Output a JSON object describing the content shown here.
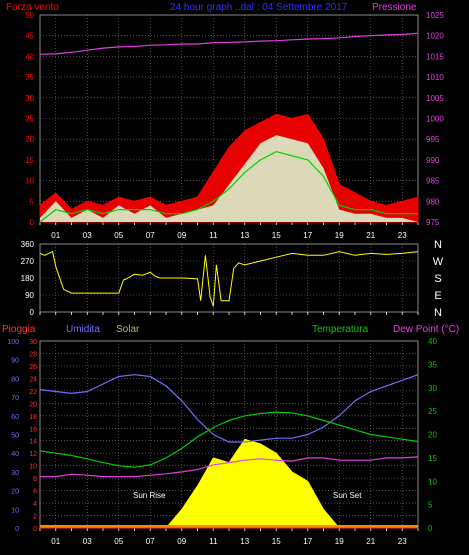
{
  "colors": {
    "background": "#000000",
    "frame": "#8a8a8a",
    "grid": "#7a7a7a",
    "text": "#ffffff",
    "hour_tick": "#ffffff",
    "wind_speed": "#ff0000",
    "wind_gust": "#ffffff",
    "wind_avg": "#00d000",
    "pressure": "#e040e0",
    "direction": "#ffff00",
    "rain": "#ff3333",
    "humidity": "#7070ff",
    "solar": "#ffff00",
    "temperature": "#00cc00",
    "dewpoint": "#e040e0",
    "title": "#3030ff",
    "sun_label": "#ffffff"
  },
  "header": {
    "left": "Forza vento",
    "center": "24 hour graph ..dal : 04 Settembre 2017",
    "right": "Pressione"
  },
  "x_ticks": [
    "01",
    "03",
    "05",
    "07",
    "09",
    "11",
    "13",
    "15",
    "17",
    "19",
    "21",
    "23"
  ],
  "chart_data": [
    {
      "type": "line",
      "title": "24 hour graph ..dal : 04 Settembre 2017",
      "left_axis": {
        "label": "Forza vento",
        "range": [
          0,
          50
        ],
        "ticks": [
          0,
          5,
          10,
          15,
          20,
          25,
          30,
          35,
          40,
          45,
          50
        ]
      },
      "right_axis": {
        "label": "Pressione",
        "range": [
          975,
          1025
        ],
        "ticks": [
          975,
          980,
          985,
          990,
          995,
          1000,
          1005,
          1010,
          1015,
          1020,
          1025
        ]
      },
      "grid": true,
      "x_hours": [
        0,
        1,
        2,
        3,
        4,
        5,
        6,
        7,
        8,
        9,
        10,
        11,
        12,
        13,
        14,
        15,
        16,
        17,
        18,
        19,
        20,
        21,
        22,
        23,
        24
      ],
      "series": [
        {
          "key": "gust",
          "values": [
            4,
            7,
            3,
            5,
            4,
            6,
            5,
            6,
            4,
            5,
            6,
            12,
            18,
            22,
            24,
            26,
            25,
            26,
            20,
            9,
            7,
            5,
            4,
            5,
            6
          ]
        },
        {
          "key": "speed",
          "values": [
            1,
            5,
            1,
            3,
            1,
            4,
            2,
            4,
            1,
            2,
            3,
            4,
            9,
            14,
            19,
            21,
            20,
            19,
            13,
            3,
            2,
            2,
            1,
            1,
            0
          ]
        },
        {
          "key": "avg",
          "values": [
            0,
            3,
            2,
            3,
            2,
            3,
            3,
            3,
            2,
            2,
            3,
            5,
            8,
            12,
            15,
            17,
            16,
            15,
            11,
            4,
            3,
            3,
            2,
            2,
            2
          ]
        },
        {
          "key": "pressure",
          "values": [
            1015.5,
            1015.6,
            1016,
            1016.5,
            1017,
            1017.3,
            1017.4,
            1017.7,
            1017.8,
            1018,
            1018,
            1018.3,
            1018.4,
            1018.5,
            1018.7,
            1018.8,
            1019,
            1019.2,
            1019.3,
            1019.5,
            1019.8,
            1020,
            1020.2,
            1020.3,
            1020.6
          ]
        }
      ]
    },
    {
      "type": "line",
      "title": "",
      "left_axis": {
        "range": [
          0,
          360
        ],
        "ticks": [
          0,
          90,
          180,
          270,
          360
        ]
      },
      "right_axis": {
        "labels": [
          "N",
          "W",
          "S",
          "E",
          "N"
        ]
      },
      "grid": true,
      "x_hours": [
        0,
        0.3,
        0.8,
        1,
        1.5,
        2,
        3,
        4,
        5,
        5.3,
        5.5,
        6,
        6.5,
        7,
        7.3,
        7.6,
        8,
        9,
        10,
        10.2,
        10.5,
        10.8,
        11,
        11.2,
        11.5,
        12,
        12.3,
        12.6,
        13,
        14,
        15,
        16,
        17,
        18,
        19,
        20,
        21,
        22,
        23,
        24
      ],
      "series": [
        {
          "key": "direction",
          "values": [
            310,
            300,
            320,
            240,
            120,
            100,
            100,
            100,
            100,
            170,
            175,
            200,
            195,
            210,
            190,
            180,
            180,
            180,
            175,
            60,
            300,
            80,
            30,
            250,
            60,
            60,
            230,
            260,
            250,
            270,
            290,
            310,
            300,
            300,
            320,
            300,
            310,
            305,
            310,
            320
          ]
        }
      ]
    },
    {
      "type": "area",
      "title": "",
      "labels": {
        "rain": "Pioggia",
        "humidity": "Umidita",
        "solar": "Solar",
        "temperature": "Temperatura",
        "dewpoint": "Dew Point (°C)"
      },
      "humidity_axis": {
        "range": [
          0,
          100
        ],
        "ticks": [
          0,
          10,
          20,
          30,
          40,
          50,
          60,
          70,
          80,
          90,
          100
        ]
      },
      "rain_axis": {
        "range": [
          0,
          30
        ],
        "ticks": [
          0,
          2,
          4,
          6,
          8,
          10,
          12,
          14,
          16,
          18,
          20,
          22,
          24,
          26,
          28,
          30
        ]
      },
      "temp_axis": {
        "range": [
          0,
          40
        ],
        "ticks": [
          0,
          5,
          10,
          15,
          20,
          25,
          30,
          35,
          40
        ]
      },
      "grid": true,
      "x_hours": [
        0,
        1,
        2,
        3,
        4,
        5,
        6,
        7,
        8,
        9,
        10,
        11,
        12,
        13,
        14,
        15,
        16,
        17,
        18,
        19,
        20,
        21,
        22,
        23,
        24
      ],
      "series": [
        {
          "key": "humidity",
          "values": [
            74,
            73,
            72,
            73,
            77,
            81,
            82,
            81,
            76,
            68,
            58,
            50,
            46,
            46,
            47,
            48,
            48,
            50,
            54,
            60,
            68,
            73,
            76,
            79,
            82
          ]
        },
        {
          "key": "temperature",
          "values": [
            16.5,
            16,
            15.5,
            14.8,
            14,
            13.3,
            13,
            13.5,
            15,
            17,
            19.5,
            21.5,
            23,
            24,
            24.5,
            24.8,
            24.6,
            24,
            23,
            22,
            21,
            20,
            19.5,
            19,
            18.5
          ]
        },
        {
          "key": "dewpoint",
          "values": [
            11,
            11,
            11.5,
            11.3,
            11,
            11,
            11,
            11.3,
            11.6,
            12,
            12.5,
            13.5,
            14,
            14.5,
            14.8,
            14.5,
            14.3,
            15,
            15,
            14.5,
            14.5,
            14.5,
            15,
            15,
            15.2
          ]
        },
        {
          "key": "solar",
          "values": [
            0,
            0,
            0,
            0,
            0,
            0,
            0,
            0,
            0,
            4,
            9,
            15,
            14,
            19,
            18,
            16,
            12,
            10,
            4,
            0,
            0,
            0,
            0,
            0,
            0
          ]
        },
        {
          "key": "rain",
          "values": [
            0,
            0,
            0,
            0,
            0,
            0,
            0,
            0,
            0,
            0,
            0,
            0,
            0,
            0,
            0,
            0,
            0,
            0,
            0,
            0,
            0,
            0,
            0,
            0,
            0
          ]
        }
      ],
      "annotations": {
        "sunrise": "Sun Rise",
        "sunset": "Sun Set"
      }
    }
  ]
}
